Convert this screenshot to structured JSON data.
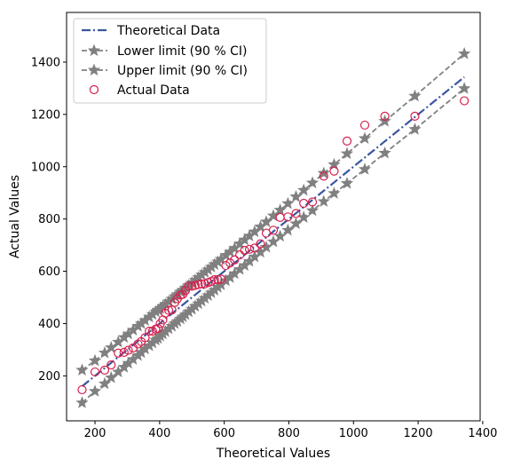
{
  "chart_data": {
    "type": "scatter",
    "xlabel": "Theoretical Values",
    "ylabel": "Actual Values",
    "xlim": [
      112,
      1392
    ],
    "ylim": [
      28,
      1590
    ],
    "x_ticks": [
      200,
      400,
      600,
      800,
      1000,
      1200,
      1400
    ],
    "y_ticks": [
      200,
      400,
      600,
      800,
      1000,
      1200,
      1400
    ],
    "x_tick_labels": [
      "200",
      "400",
      "600",
      "800",
      "1000",
      "1200",
      "1400"
    ],
    "y_tick_labels": [
      "200",
      "400",
      "600",
      "800",
      "1000",
      "1200",
      "1400"
    ],
    "grid": false,
    "legend_position": "top-left",
    "x": [
      160,
      200,
      230,
      250,
      272,
      290,
      303,
      318,
      333,
      343,
      355,
      368,
      378,
      388,
      395,
      402,
      410,
      418,
      428,
      438,
      447,
      455,
      465,
      472,
      480,
      490,
      500,
      510,
      520,
      530,
      540,
      550,
      560,
      570,
      580,
      590,
      605,
      618,
      632,
      648,
      663,
      678,
      694,
      712,
      730,
      752,
      773,
      797,
      822,
      846,
      873,
      908,
      940,
      980,
      1035,
      1097,
      1190,
      1343
    ],
    "series": [
      {
        "name": "Theoretical Data",
        "style": "dash-dot-line",
        "color": "#3a56a0",
        "values": [
          160,
          200,
          230,
          250,
          272,
          290,
          303,
          318,
          333,
          343,
          355,
          368,
          378,
          388,
          395,
          402,
          410,
          418,
          428,
          438,
          447,
          455,
          465,
          472,
          480,
          490,
          500,
          510,
          520,
          530,
          540,
          550,
          560,
          570,
          580,
          590,
          605,
          618,
          632,
          648,
          663,
          678,
          694,
          712,
          730,
          752,
          773,
          797,
          822,
          846,
          873,
          908,
          940,
          980,
          1035,
          1097,
          1190,
          1343
        ]
      },
      {
        "name": "Lower limit (90 % CI)",
        "style": "dashed-line-star",
        "color": "#808080",
        "values": [
          97,
          141,
          170,
          193,
          215,
          233,
          248,
          263,
          278,
          289,
          303,
          315,
          326,
          337,
          343,
          352,
          360,
          369,
          380,
          390,
          400,
          408,
          418,
          426,
          434,
          445,
          455,
          466,
          476,
          486,
          497,
          507,
          518,
          528,
          539,
          548,
          564,
          576,
          591,
          607,
          622,
          638,
          655,
          673,
          692,
          713,
          734,
          757,
          782,
          806,
          832,
          867,
          898,
          936,
          990,
          1052,
          1143,
          1299
        ]
      },
      {
        "name": "Upper limit (90 % CI)",
        "style": "dashed-line-star",
        "color": "#808080",
        "values": [
          222,
          258,
          288,
          308,
          329,
          347,
          360,
          375,
          390,
          400,
          412,
          425,
          435,
          445,
          452,
          458,
          466,
          474,
          484,
          494,
          503,
          511,
          521,
          528,
          536,
          546,
          556,
          566,
          576,
          586,
          596,
          606,
          616,
          626,
          636,
          646,
          661,
          674,
          688,
          705,
          720,
          735,
          751,
          770,
          789,
          812,
          834,
          859,
          885,
          910,
          938,
          975,
          1008,
          1050,
          1108,
          1174,
          1270,
          1432
        ]
      },
      {
        "name": "Actual Data",
        "style": "hollow-circle",
        "color": "#d6204d",
        "values": [
          147,
          215,
          222,
          242,
          287,
          290,
          298,
          307,
          322,
          331,
          346,
          371,
          371,
          379,
          381,
          400,
          414,
          440,
          451,
          452,
          481,
          495,
          509,
          512,
          526,
          543,
          543,
          546,
          549,
          552,
          552,
          557,
          561,
          568,
          568,
          570,
          622,
          632,
          644,
          663,
          680,
          684,
          689,
          705,
          746,
          757,
          806,
          808,
          821,
          860,
          865,
          964,
          983,
          1098,
          1159,
          1193,
          1193,
          1252
        ]
      }
    ]
  }
}
